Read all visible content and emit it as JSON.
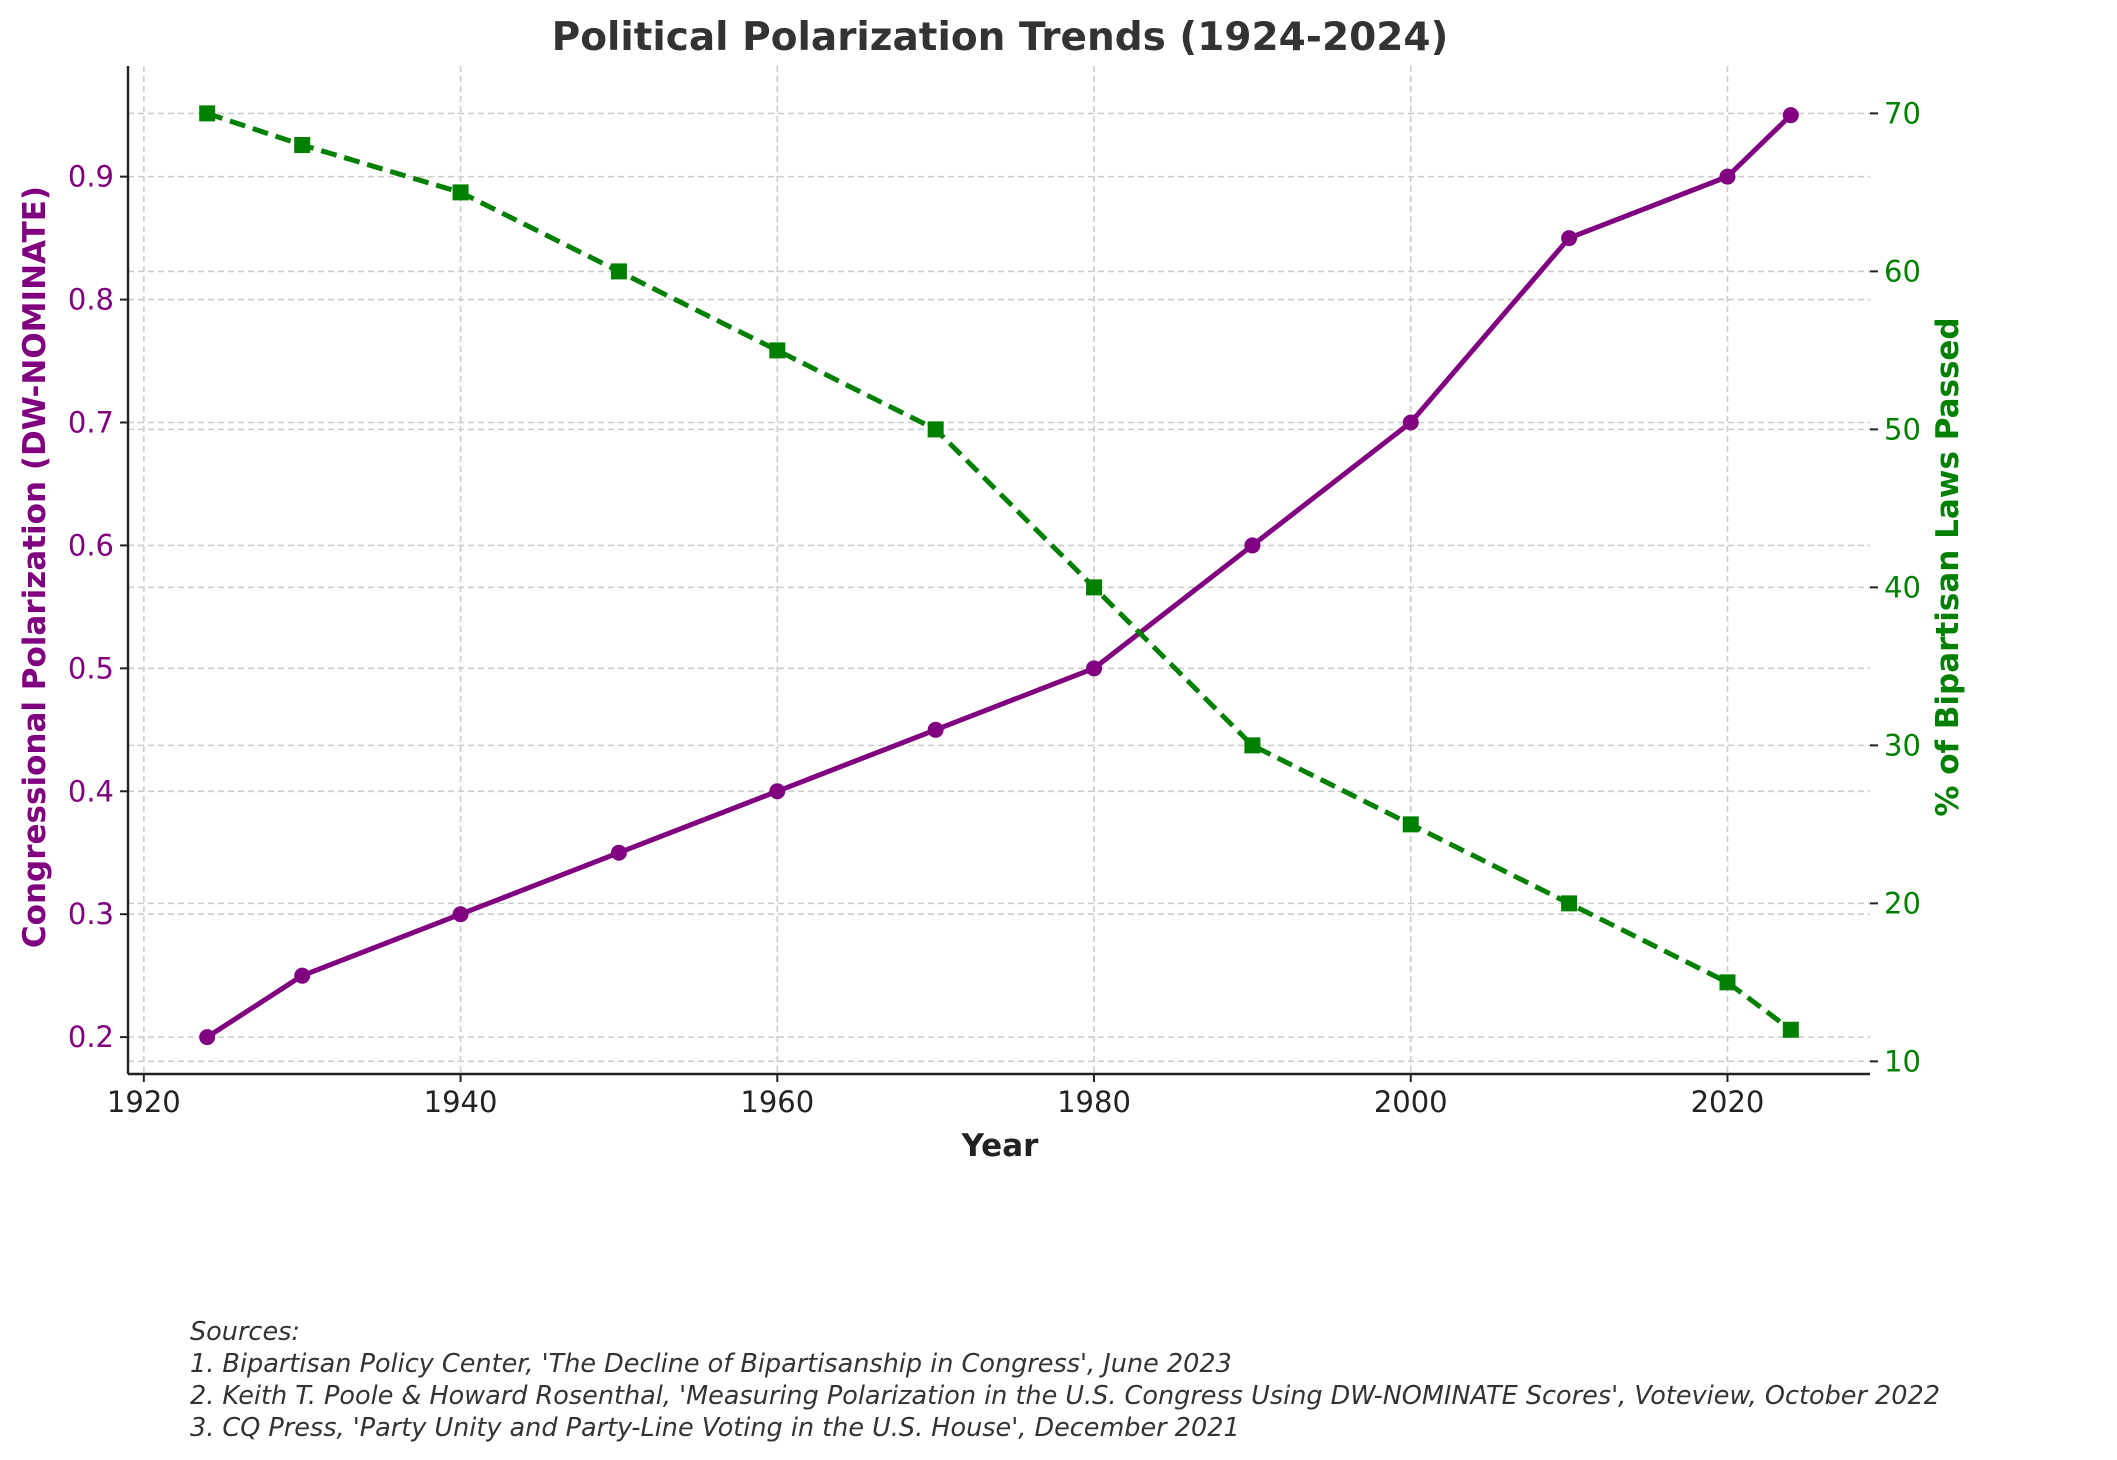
{
  "chart_data": {
    "type": "line",
    "title": "Political Polarization Trends (1924-2024)",
    "xlabel": "Year",
    "ylabel_left": "Congressional Polarization (DW-NOMINATE)",
    "ylabel_right": "% of Bipartisan Laws Passed",
    "x": [
      1924,
      1930,
      1940,
      1950,
      1960,
      1970,
      1980,
      1990,
      2000,
      2010,
      2020,
      2024
    ],
    "xlim": [
      1919,
      2029
    ],
    "ylim_left": [
      0.17,
      0.99
    ],
    "ylim_right": [
      9.2,
      73
    ],
    "x_ticks": [
      "1920",
      "1940",
      "1960",
      "1980",
      "2000",
      "2020"
    ],
    "y_ticks_left": [
      "0.2",
      "0.3",
      "0.4",
      "0.5",
      "0.6",
      "0.7",
      "0.8",
      "0.9"
    ],
    "y_ticks_right": [
      "10",
      "20",
      "30",
      "40",
      "50",
      "60",
      "70"
    ],
    "grid": true,
    "series": [
      {
        "axis": "left",
        "color": "#800080",
        "marker": "circle",
        "line": "solid",
        "values": [
          0.2,
          0.25,
          0.3,
          0.35,
          0.4,
          0.45,
          0.5,
          0.6,
          0.7,
          0.85,
          0.9,
          0.95
        ]
      },
      {
        "axis": "right",
        "color": "#008000",
        "marker": "square",
        "line": "dashed",
        "values": [
          70,
          68,
          65,
          60,
          55,
          50,
          40,
          30,
          25,
          20,
          15,
          12
        ]
      }
    ]
  },
  "sources": {
    "heading": "Sources:",
    "items": [
      "1. Bipartisan Policy Center, 'The Decline of Bipartisanship in Congress', June 2023",
      "2. Keith T. Poole & Howard Rosenthal, 'Measuring Polarization in the U.S. Congress Using DW-NOMINATE Scores', Voteview, October 2022",
      "3. CQ Press, 'Party Unity and Party-Line Voting in the U.S. House', December 2021"
    ]
  }
}
